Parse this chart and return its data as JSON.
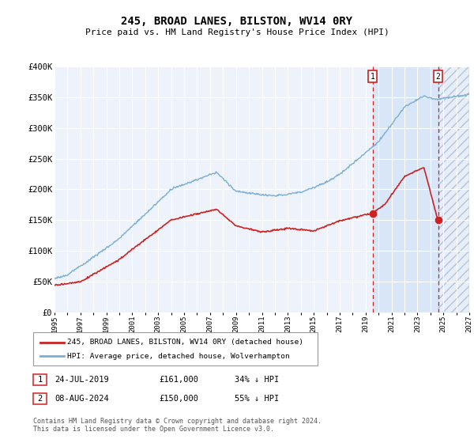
{
  "title": "245, BROAD LANES, BILSTON, WV14 0RY",
  "subtitle": "Price paid vs. HM Land Registry's House Price Index (HPI)",
  "ylabel_ticks": [
    "£0",
    "£50K",
    "£100K",
    "£150K",
    "£200K",
    "£250K",
    "£300K",
    "£350K",
    "£400K"
  ],
  "ytick_values": [
    0,
    50000,
    100000,
    150000,
    200000,
    250000,
    300000,
    350000,
    400000
  ],
  "ylim": [
    0,
    400000
  ],
  "xlim_start": 1995,
  "xlim_end": 2027,
  "hpi_color": "#7aadd4",
  "price_color": "#cc2222",
  "marker1_date": 2019.55,
  "marker1_price": 161000,
  "marker2_date": 2024.6,
  "marker2_price": 150000,
  "legend_line1": "245, BROAD LANES, BILSTON, WV14 0RY (detached house)",
  "legend_line2": "HPI: Average price, detached house, Wolverhampton",
  "footer": "Contains HM Land Registry data © Crown copyright and database right 2024.\nThis data is licensed under the Open Government Licence v3.0.",
  "background_color": "#eef2fa",
  "shade_between_color": "#d8e6f7",
  "shade_after_color": "#e8eef8"
}
